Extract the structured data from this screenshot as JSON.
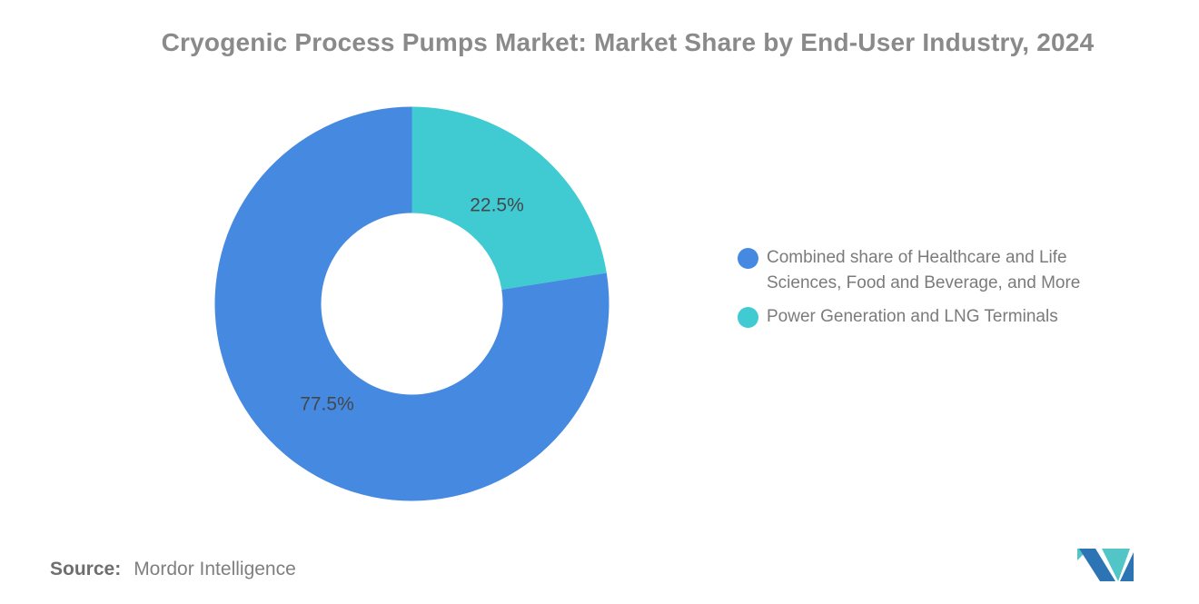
{
  "title": "Cryogenic Process Pumps Market: Market Share by End-User Industry, 2024",
  "source": {
    "label": "Source:",
    "value": "Mordor Intelligence"
  },
  "legend": [
    {
      "label": "Combined share of Healthcare and Life Sciences, Food and Beverage, and More",
      "color": "#4589E0"
    },
    {
      "label": "Power Generation and LNG Terminals",
      "color": "#3FCBD1"
    }
  ],
  "chart_data": {
    "type": "pie",
    "donut": true,
    "title": "Cryogenic Process Pumps Market: Market Share by End-User Industry, 2024",
    "start_angle_deg": 0,
    "direction": "clockwise",
    "legend_position": "right",
    "slices": [
      {
        "label": "Power Generation and LNG Terminals",
        "value": 22.5,
        "display": "22.5%",
        "color": "#3FCBD1"
      },
      {
        "label": "Combined share of Healthcare and Life Sciences, Food and Beverage, and More",
        "value": 77.5,
        "display": "77.5%",
        "color": "#4589E0"
      }
    ]
  },
  "logo": {
    "name": "mordor-intelligence-logo",
    "colors": {
      "blue": "#2C74B4",
      "teal": "#52C5C6"
    }
  }
}
